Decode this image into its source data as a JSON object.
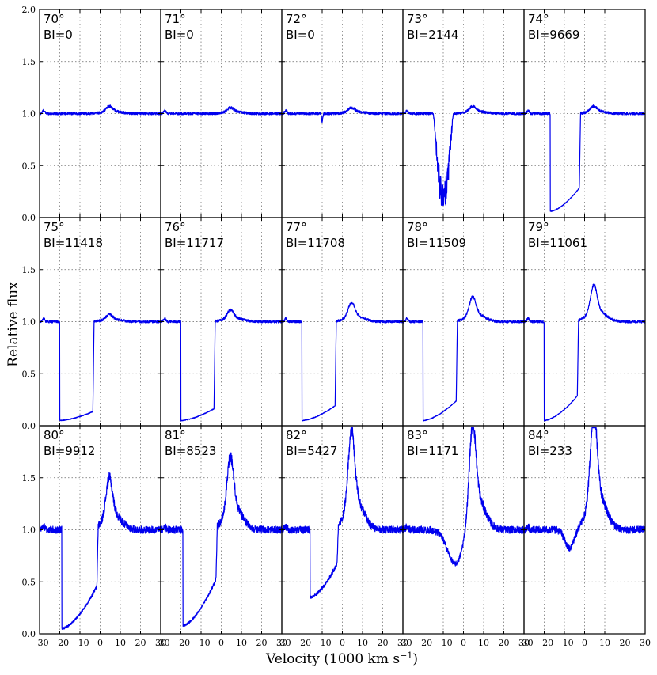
{
  "chart_data": {
    "type": "line",
    "layout": "5x3 grid of small-multiple spectra",
    "xlabel": "Velocity (1000 km s⁻¹)",
    "ylabel": "Relative flux",
    "xlim": [
      -30,
      30
    ],
    "ylim": [
      0,
      2
    ],
    "xticks": [
      -30,
      -20,
      -10,
      0,
      10,
      20,
      30
    ],
    "yticks": [
      0.0,
      0.5,
      1.0,
      1.5,
      2.0
    ],
    "xtick_labels": [
      "−30",
      "−20",
      "−10",
      "0",
      "10",
      "20",
      "30"
    ],
    "ytick_labels": [
      "0.0",
      "0.5",
      "1.0",
      "1.5",
      "2.0"
    ],
    "grid": true,
    "line_color": "#0000ee",
    "panels": [
      {
        "angle": "70°",
        "bi": "BI=0",
        "kind": "flat",
        "trough_depth": 0.0,
        "peak": 0.05
      },
      {
        "angle": "71°",
        "bi": "BI=0",
        "kind": "flat",
        "trough_depth": 0.0,
        "peak": 0.04
      },
      {
        "angle": "72°",
        "bi": "BI=0",
        "kind": "flat",
        "trough_depth": 0.08,
        "peak": 0.04
      },
      {
        "angle": "73°",
        "bi": "BI=2144",
        "kind": "noisy-trough",
        "trough_start": -15,
        "trough_end": -5,
        "trough_min": 0.12,
        "peak": 0.05
      },
      {
        "angle": "74°",
        "bi": "BI=9669",
        "kind": "trough",
        "trough_start": -17,
        "trough_end": -2,
        "trough_min": 0.06,
        "shoulder": 0.3,
        "peak": 0.05
      },
      {
        "angle": "75°",
        "bi": "BI=11418",
        "kind": "trough",
        "trough_start": -20,
        "trough_end": -3,
        "trough_min": 0.05,
        "shoulder": 0.14,
        "peak": 0.05
      },
      {
        "angle": "76°",
        "bi": "BI=11717",
        "kind": "trough",
        "trough_start": -20,
        "trough_end": -3,
        "trough_min": 0.05,
        "shoulder": 0.17,
        "peak": 0.08
      },
      {
        "angle": "77°",
        "bi": "BI=11708",
        "kind": "trough",
        "trough_start": -20,
        "trough_end": -3,
        "trough_min": 0.05,
        "shoulder": 0.2,
        "peak": 0.13
      },
      {
        "angle": "78°",
        "bi": "BI=11509",
        "kind": "trough",
        "trough_start": -20,
        "trough_end": -3,
        "trough_min": 0.05,
        "shoulder": 0.25,
        "peak": 0.17
      },
      {
        "angle": "79°",
        "bi": "BI=11061",
        "kind": "trough",
        "trough_start": -20,
        "trough_end": -3,
        "trough_min": 0.05,
        "shoulder": 0.3,
        "peak": 0.25
      },
      {
        "angle": "80°",
        "bi": "BI=9912",
        "kind": "trough",
        "trough_start": -19,
        "trough_end": -1,
        "trough_min": 0.05,
        "shoulder": 0.48,
        "peak": 0.35
      },
      {
        "angle": "81°",
        "bi": "BI=8523",
        "kind": "trough",
        "trough_start": -19,
        "trough_end": -2,
        "trough_min": 0.08,
        "shoulder": 0.55,
        "peak": 0.5
      },
      {
        "angle": "82°",
        "bi": "BI=5427",
        "kind": "trough",
        "trough_start": -16,
        "trough_end": -2,
        "trough_min": 0.35,
        "shoulder": 0.7,
        "peak": 0.67
      },
      {
        "angle": "83°",
        "bi": "BI=1171",
        "kind": "shallow",
        "trough_start": -15,
        "trough_end": -2,
        "trough_min": 0.65,
        "peak": 0.76
      },
      {
        "angle": "84°",
        "bi": "BI=233",
        "kind": "shallow",
        "trough_start": -13,
        "trough_end": -6,
        "trough_min": 0.82,
        "peak": 0.82
      }
    ]
  }
}
